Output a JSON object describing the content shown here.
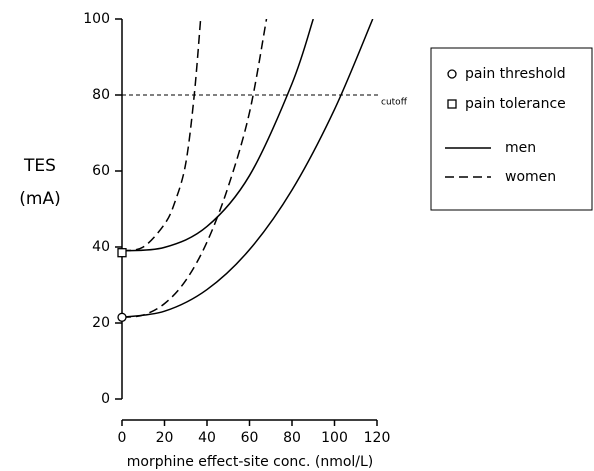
{
  "chart_data": {
    "type": "line",
    "ylabel": [
      "TES",
      "(mA)"
    ],
    "xlabel": "morphine effect-site conc. (nmol/L)",
    "xlim": [
      0,
      120
    ],
    "xticks": [
      0,
      20,
      40,
      60,
      80,
      100,
      120
    ],
    "ylim": [
      0,
      100
    ],
    "yticks": [
      0,
      20,
      40,
      60,
      80,
      100
    ],
    "color": "#000000",
    "series": [
      {
        "dash": "solid",
        "x": [
          0,
          20,
          40,
          60,
          80,
          100,
          118
        ],
        "values": [
          21.5,
          23.1,
          28.8,
          39.3,
          55,
          76.2,
          100
        ]
      },
      {
        "dash": "solid",
        "x": [
          0,
          20,
          40,
          60,
          80,
          90
        ],
        "values": [
          39,
          39.9,
          45.4,
          58.8,
          83,
          100
        ]
      },
      {
        "dash": "dashed",
        "x": [
          0,
          10,
          20,
          30,
          40,
          50,
          60,
          68
        ],
        "values": [
          21.5,
          22.1,
          25.1,
          31.2,
          41.3,
          55.9,
          75.4,
          100
        ]
      },
      {
        "dash": "dashed",
        "x": [
          0,
          10,
          20,
          25,
          30,
          34,
          37
        ],
        "values": [
          39,
          40,
          46,
          52,
          62,
          80,
          100
        ]
      }
    ],
    "markers": [
      {
        "shape": "circle",
        "x": 0,
        "y": 21.5
      },
      {
        "shape": "square",
        "x": 0,
        "y": 38.5
      }
    ],
    "cutoff": {
      "text": "cutoff",
      "y": 80
    },
    "legend": [
      {
        "label": "pain threshold",
        "symbol": "circle"
      },
      {
        "label": "pain tolerance",
        "symbol": "square"
      },
      {
        "label": "men",
        "symbol": "solid"
      },
      {
        "label": "women",
        "symbol": "dashed"
      }
    ]
  }
}
